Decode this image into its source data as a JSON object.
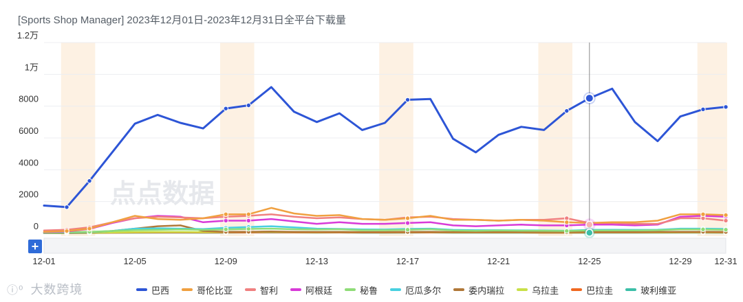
{
  "header": {
    "title": "[Sports Shop Manager]  2023年12月01日-2023年12月31日全平台下载量"
  },
  "watermark": "点点数据",
  "toolbar": {
    "add_label": "+"
  },
  "brand": {
    "logo_text": "大数跨境",
    "logo_mark": "ⓘ⁰"
  },
  "chart_data": {
    "type": "line",
    "x_dates": [
      "12-01",
      "12-02",
      "12-03",
      "12-04",
      "12-05",
      "12-06",
      "12-07",
      "12-08",
      "12-09",
      "12-10",
      "12-11",
      "12-12",
      "12-13",
      "12-14",
      "12-15",
      "12-16",
      "12-17",
      "12-18",
      "12-19",
      "12-20",
      "12-21",
      "12-22",
      "12-23",
      "12-24",
      "12-25",
      "12-26",
      "12-27",
      "12-28",
      "12-29",
      "12-30",
      "12-31"
    ],
    "x_tick_labels": [
      "12-01",
      "12-05",
      "12-09",
      "12-13",
      "12-17",
      "12-21",
      "12-25",
      "12-29",
      "12-31"
    ],
    "y_ticks": [
      0,
      2000,
      4000,
      6000,
      8000,
      10000,
      12000
    ],
    "y_tick_labels": [
      "0",
      "2000",
      "4000",
      "6000",
      "8000",
      "1万",
      "1.2万"
    ],
    "ylim": [
      0,
      12000
    ],
    "weekend_bands": [
      [
        "12-02",
        "12-03"
      ],
      [
        "12-09",
        "12-10"
      ],
      [
        "12-16",
        "12-17"
      ],
      [
        "12-23",
        "12-24"
      ],
      [
        "12-30",
        "12-31"
      ]
    ],
    "crosshair_date": "12-25",
    "legend_position": "bottom",
    "series": [
      {
        "name": "巴西",
        "color": "#2d55d6",
        "values": [
          1750,
          1650,
          3300,
          5100,
          6900,
          7450,
          6950,
          6600,
          7850,
          8050,
          9200,
          7650,
          7000,
          7550,
          6500,
          6950,
          8400,
          8450,
          5950,
          5100,
          6200,
          6700,
          6500,
          7700,
          8500,
          9100,
          7000,
          5800,
          7350,
          7800,
          7950
        ]
      },
      {
        "name": "哥伦比亚",
        "color": "#f0a040",
        "values": [
          100,
          150,
          300,
          700,
          1100,
          900,
          850,
          950,
          1200,
          1200,
          1600,
          1250,
          1100,
          1150,
          900,
          850,
          950,
          1100,
          850,
          850,
          800,
          850,
          800,
          700,
          650,
          700,
          700,
          800,
          1200,
          1200,
          1150
        ]
      },
      {
        "name": "智利",
        "color": "#f08080",
        "values": [
          180,
          230,
          380,
          700,
          950,
          1050,
          1000,
          950,
          1050,
          1100,
          1200,
          1050,
          950,
          1000,
          900,
          850,
          1000,
          1050,
          900,
          850,
          800,
          850,
          850,
          950,
          650,
          650,
          600,
          600,
          950,
          950,
          800
        ]
      },
      {
        "name": "阿根廷",
        "color": "#d83ad8",
        "values": [
          80,
          120,
          280,
          650,
          950,
          1100,
          1050,
          700,
          800,
          800,
          900,
          750,
          600,
          700,
          600,
          600,
          650,
          700,
          500,
          450,
          500,
          550,
          500,
          500,
          550,
          550,
          500,
          550,
          1050,
          1100,
          1050
        ]
      },
      {
        "name": "秘鲁",
        "color": "#8fdc78",
        "values": [
          60,
          70,
          100,
          150,
          200,
          220,
          250,
          220,
          250,
          280,
          300,
          260,
          240,
          260,
          200,
          200,
          230,
          260,
          180,
          160,
          180,
          170,
          160,
          150,
          180,
          180,
          180,
          200,
          250,
          250,
          230
        ]
      },
      {
        "name": "厄瓜多尔",
        "color": "#48d0e0",
        "values": [
          40,
          50,
          80,
          150,
          300,
          320,
          300,
          270,
          350,
          400,
          450,
          380,
          300,
          280,
          250,
          240,
          280,
          300,
          220,
          200,
          200,
          190,
          180,
          170,
          220,
          230,
          220,
          230,
          300,
          300,
          280
        ]
      },
      {
        "name": "委内瑞拉",
        "color": "#b07838",
        "values": [
          30,
          40,
          60,
          150,
          300,
          450,
          500,
          150,
          100,
          100,
          120,
          100,
          90,
          90,
          80,
          80,
          90,
          100,
          80,
          80,
          80,
          80,
          70,
          70,
          80,
          80,
          80,
          90,
          100,
          100,
          90
        ]
      },
      {
        "name": "乌拉圭",
        "color": "#c8e048",
        "values": [
          20,
          30,
          40,
          60,
          80,
          90,
          90,
          80,
          90,
          100,
          100,
          90,
          80,
          90,
          80,
          80,
          90,
          90,
          70,
          70,
          70,
          70,
          60,
          60,
          70,
          70,
          70,
          70,
          80,
          80,
          80
        ]
      },
      {
        "name": "巴拉圭",
        "color": "#f06820",
        "values": [
          15,
          20,
          30,
          40,
          50,
          60,
          60,
          50,
          60,
          60,
          70,
          60,
          50,
          60,
          50,
          50,
          60,
          60,
          50,
          50,
          50,
          50,
          40,
          40,
          50,
          50,
          50,
          50,
          60,
          60,
          50
        ]
      },
      {
        "name": "玻利维亚",
        "color": "#3cbfa8",
        "values": [
          10,
          15,
          20,
          30,
          40,
          45,
          45,
          40,
          45,
          50,
          55,
          50,
          45,
          50,
          40,
          40,
          45,
          50,
          40,
          40,
          40,
          40,
          35,
          35,
          40,
          40,
          40,
          40,
          45,
          45,
          40
        ]
      }
    ]
  }
}
